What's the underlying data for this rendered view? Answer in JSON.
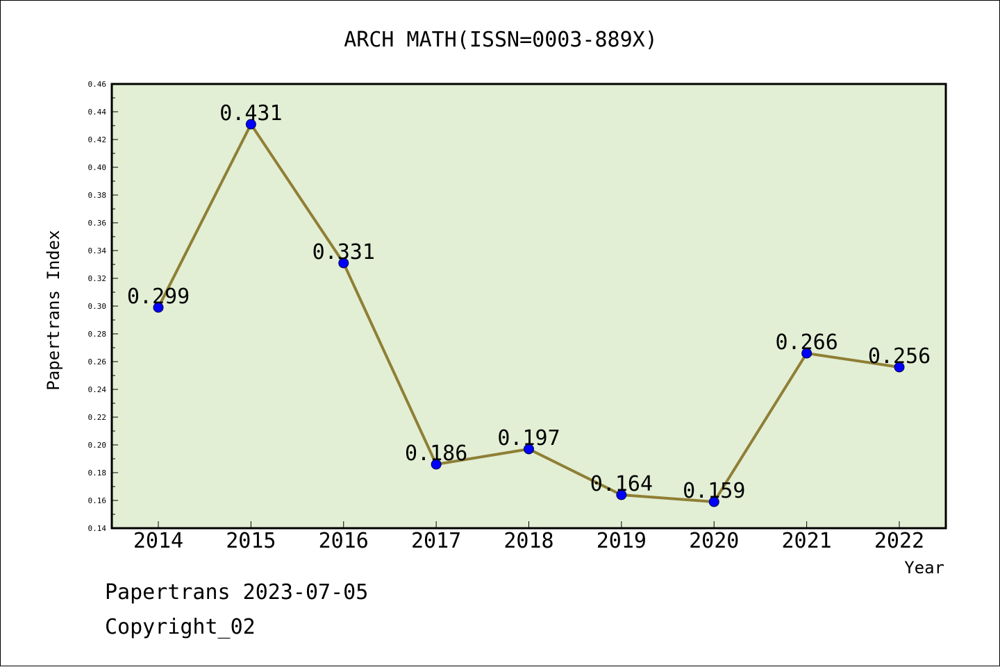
{
  "chart_data": {
    "type": "line",
    "title": "ARCH MATH(ISSN=0003-889X)",
    "xlabel": "Year",
    "ylabel": "Papertrans Index",
    "categories": [
      "2014",
      "2015",
      "2016",
      "2017",
      "2018",
      "2019",
      "2020",
      "2021",
      "2022"
    ],
    "values": [
      0.299,
      0.431,
      0.331,
      0.186,
      0.197,
      0.164,
      0.159,
      0.266,
      0.256
    ],
    "data_labels": [
      "0.299",
      "0.431",
      "0.331",
      "0.186",
      "0.197",
      "0.164",
      "0.159",
      "0.266",
      "0.256"
    ],
    "ylim": [
      0.14,
      0.46
    ],
    "yticks": [
      "0.14",
      "0.16",
      "0.18",
      "0.20",
      "0.22",
      "0.24",
      "0.26",
      "0.28",
      "0.30",
      "0.32",
      "0.34",
      "0.36",
      "0.38",
      "0.40",
      "0.42",
      "0.44",
      "0.46"
    ],
    "grid": false,
    "legend": "none",
    "colors": {
      "plot_background": "#e2efd5",
      "line": "#8f7f35",
      "marker": "#0000ff",
      "axis": "#000000"
    }
  },
  "footer": {
    "line1": "Papertrans 2023-07-05",
    "line2": "Copyright_02"
  }
}
